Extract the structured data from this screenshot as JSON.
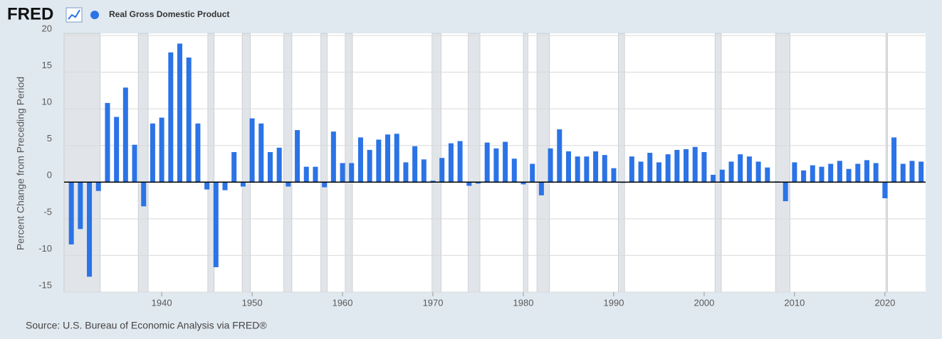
{
  "logo": "FRED",
  "chart_data": {
    "type": "bar",
    "y_label": "Percent Change from Preceding Period",
    "source": "Source: U.S. Bureau of Economic Analysis via FRED®",
    "x": [
      1930,
      1931,
      1932,
      1933,
      1934,
      1935,
      1936,
      1937,
      1938,
      1939,
      1940,
      1941,
      1942,
      1943,
      1944,
      1945,
      1946,
      1947,
      1948,
      1949,
      1950,
      1951,
      1952,
      1953,
      1954,
      1955,
      1956,
      1957,
      1958,
      1959,
      1960,
      1961,
      1962,
      1963,
      1964,
      1965,
      1966,
      1967,
      1968,
      1969,
      1970,
      1971,
      1972,
      1973,
      1974,
      1975,
      1976,
      1977,
      1978,
      1979,
      1980,
      1981,
      1982,
      1983,
      1984,
      1985,
      1986,
      1987,
      1988,
      1989,
      1990,
      1991,
      1992,
      1993,
      1994,
      1995,
      1996,
      1997,
      1998,
      1999,
      2000,
      2001,
      2002,
      2003,
      2004,
      2005,
      2006,
      2007,
      2008,
      2009,
      2010,
      2011,
      2012,
      2013,
      2014,
      2015,
      2016,
      2017,
      2018,
      2019,
      2020,
      2021,
      2022,
      2023,
      2024
    ],
    "series": [
      {
        "name": "Real Gross Domestic Product",
        "color": "#2b73e6",
        "values": [
          -8.5,
          -6.4,
          -12.9,
          -1.2,
          10.8,
          8.9,
          12.9,
          5.1,
          -3.3,
          8.0,
          8.8,
          17.7,
          18.9,
          17.0,
          8.0,
          -1.0,
          -11.6,
          -1.1,
          4.1,
          -0.6,
          8.7,
          8.0,
          4.1,
          4.7,
          -0.6,
          7.1,
          2.1,
          2.1,
          -0.7,
          6.9,
          2.6,
          2.6,
          6.1,
          4.4,
          5.8,
          6.5,
          6.6,
          2.7,
          4.9,
          3.1,
          0.2,
          3.3,
          5.3,
          5.6,
          -0.5,
          -0.2,
          5.4,
          4.6,
          5.5,
          3.2,
          -0.3,
          2.5,
          -1.8,
          4.6,
          7.2,
          4.2,
          3.5,
          3.5,
          4.2,
          3.7,
          1.9,
          -0.1,
          3.5,
          2.8,
          4.0,
          2.7,
          3.8,
          4.4,
          4.5,
          4.8,
          4.1,
          1.0,
          1.7,
          2.8,
          3.8,
          3.5,
          2.8,
          2.0,
          0.1,
          -2.6,
          2.7,
          1.6,
          2.3,
          2.1,
          2.5,
          2.9,
          1.8,
          2.5,
          3.0,
          2.6,
          -2.2,
          6.1,
          2.5,
          2.9,
          2.8
        ]
      }
    ],
    "recessions": [
      [
        1929.2,
        1933.2
      ],
      [
        1937.4,
        1938.5
      ],
      [
        1945.1,
        1945.8
      ],
      [
        1948.9,
        1949.8
      ],
      [
        1953.5,
        1954.4
      ],
      [
        1957.6,
        1958.3
      ],
      [
        1960.3,
        1961.1
      ],
      [
        1969.9,
        1970.9
      ],
      [
        1973.9,
        1975.2
      ],
      [
        1980.0,
        1980.5
      ],
      [
        1981.5,
        1982.9
      ],
      [
        1990.5,
        1991.2
      ],
      [
        2001.2,
        2001.9
      ],
      [
        2007.9,
        2009.5
      ],
      [
        2020.1,
        2020.3
      ]
    ],
    "recession_color": "#e1e5e9",
    "xlim": [
      1929.2,
      2024.5
    ],
    "ylim": [
      -15,
      20
    ],
    "xticks": [
      1940,
      1950,
      1960,
      1970,
      1980,
      1990,
      2000,
      2010,
      2020
    ],
    "yticks": [
      -15,
      -10,
      -5,
      0,
      5,
      10,
      15,
      20
    ],
    "grid": true
  }
}
